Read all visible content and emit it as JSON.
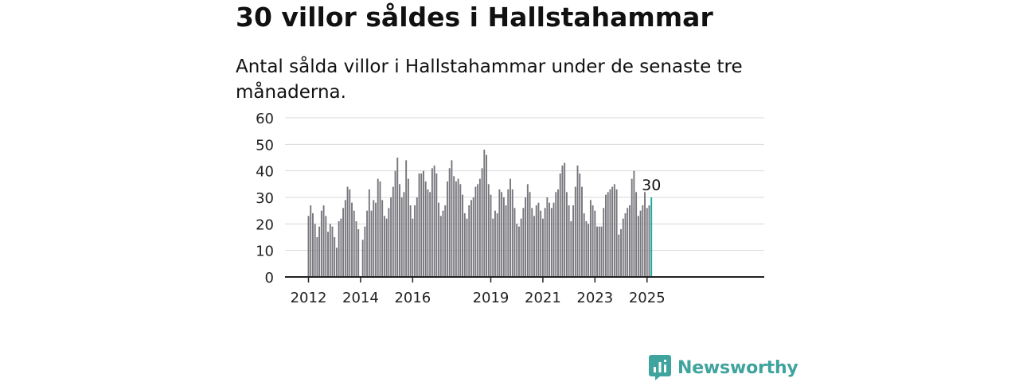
{
  "header": {
    "title": "30 villor såldes i Hallstahammar",
    "subtitle": "Antal sålda villor i Hallstahammar under de senaste tre månaderna."
  },
  "brand": {
    "name": "Newsworthy",
    "icon": "newsworthy-logo-icon",
    "color": "#3fa39e"
  },
  "colors": {
    "bar": "#76767c",
    "highlight": "#1aa7a3",
    "grid": "#d8d8d8",
    "axis": "#222222"
  },
  "chart_data": {
    "type": "bar",
    "title": "30 villor såldes i Hallstahammar",
    "subtitle": "Antal sålda villor i Hallstahammar under de senaste tre månaderna.",
    "xlabel": "",
    "ylabel": "",
    "ylim": [
      0,
      60
    ],
    "yticks": [
      0,
      10,
      20,
      30,
      40,
      50,
      60
    ],
    "xtick_labels": [
      "2012",
      "2014",
      "2016",
      "2019",
      "2021",
      "2023",
      "2025"
    ],
    "grid": true,
    "x_start": "2012-01",
    "x_end": "2025-04",
    "frequency": "monthly",
    "values": [
      23,
      27,
      24,
      20,
      15,
      19,
      25,
      27,
      23,
      17,
      20,
      19,
      15,
      11,
      21,
      22,
      26,
      29,
      34,
      33,
      28,
      25,
      21,
      18,
      0,
      14,
      19,
      25,
      33,
      25,
      29,
      28,
      37,
      36,
      29,
      23,
      22,
      26,
      30,
      34,
      40,
      45,
      35,
      30,
      32,
      44,
      37,
      27,
      22,
      27,
      30,
      39,
      39,
      40,
      36,
      33,
      32,
      41,
      42,
      39,
      28,
      23,
      25,
      27,
      36,
      41,
      44,
      38,
      36,
      37,
      35,
      31,
      24,
      22,
      27,
      29,
      30,
      34,
      35,
      37,
      41,
      48,
      46,
      35,
      31,
      22,
      25,
      24,
      33,
      32,
      30,
      27,
      33,
      37,
      33,
      26,
      20,
      19,
      22,
      26,
      30,
      35,
      32,
      26,
      23,
      27,
      28,
      25,
      22,
      26,
      30,
      28,
      26,
      28,
      32,
      33,
      39,
      42,
      43,
      32,
      27,
      21,
      27,
      34,
      42,
      39,
      34,
      24,
      21,
      20,
      29,
      27,
      25,
      19,
      19,
      19,
      26,
      31,
      32,
      33,
      34,
      35,
      33,
      16,
      18,
      22,
      24,
      26,
      27,
      37,
      40,
      32,
      23,
      25,
      27,
      32,
      26,
      27,
      30
    ],
    "highlight": {
      "label": "30",
      "value": 30,
      "period": "2025-04"
    }
  }
}
